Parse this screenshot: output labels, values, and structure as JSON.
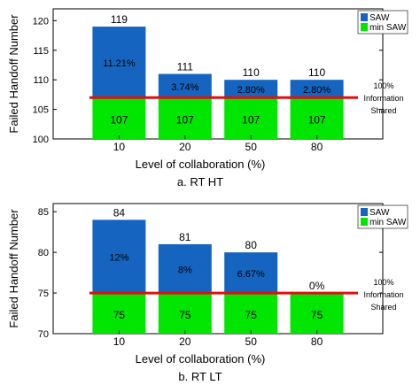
{
  "chart_data": [
    {
      "type": "bar",
      "subtitle": "a. RT HT",
      "xlabel": "Level of collaboration (%)",
      "ylabel": "Failed Handoff Number",
      "categories": [
        "10",
        "20",
        "50",
        "80"
      ],
      "ylim": [
        100,
        122
      ],
      "yticks": [
        100,
        105,
        110,
        115,
        120
      ],
      "series": [
        {
          "name": "SAW",
          "color": "#1565c0",
          "values": [
            119,
            111,
            110,
            110
          ]
        },
        {
          "name": "min SAW",
          "color": "#00e600",
          "values": [
            107,
            107,
            107,
            107
          ]
        }
      ],
      "top_labels": [
        "119",
        "111",
        "110",
        "110"
      ],
      "bottom_labels": [
        "107",
        "107",
        "107",
        "107"
      ],
      "pct_labels": [
        "11.21%",
        "3.74%",
        "2.80%",
        "2.80%"
      ],
      "reference_line": {
        "value": 107,
        "color": "#e01010"
      },
      "annotation": [
        "100%",
        "Information",
        "Shared"
      ],
      "legend_position": "top-right",
      "grid": false
    },
    {
      "type": "bar",
      "subtitle": "b. RT LT",
      "xlabel": "Level of collaboration (%)",
      "ylabel": "Failed Handoff Number",
      "categories": [
        "10",
        "20",
        "50",
        "80"
      ],
      "ylim": [
        70,
        86
      ],
      "yticks": [
        70,
        75,
        80,
        85
      ],
      "series": [
        {
          "name": "SAW",
          "color": "#1565c0",
          "values": [
            84,
            81,
            80,
            75
          ]
        },
        {
          "name": "min SAW",
          "color": "#00e600",
          "values": [
            75,
            75,
            75,
            75
          ]
        }
      ],
      "top_labels": [
        "84",
        "81",
        "80",
        "0%"
      ],
      "bottom_labels": [
        "75",
        "75",
        "75",
        "75"
      ],
      "pct_labels": [
        "12%",
        "8%",
        "6.67%",
        ""
      ],
      "reference_line": {
        "value": 75,
        "color": "#e01010"
      },
      "annotation": [
        "100%",
        "Information",
        "Shared"
      ],
      "legend_position": "top-right",
      "grid": false
    }
  ]
}
